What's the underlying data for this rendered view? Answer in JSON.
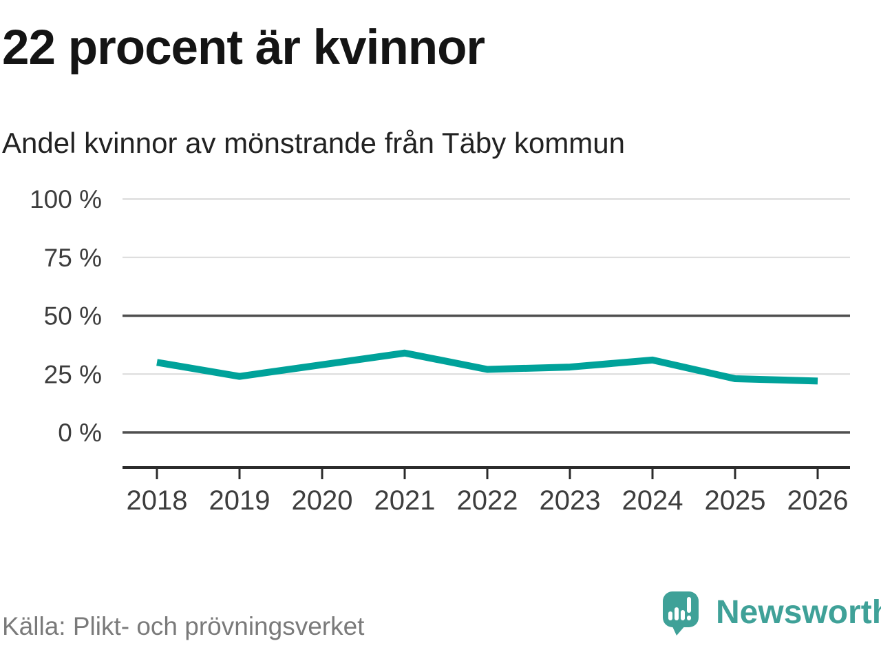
{
  "header": {
    "title": "22 procent är kvinnor",
    "subtitle": "Andel kvinnor av mönstrande från Täby kommun"
  },
  "footer": {
    "source": "Källa: Plikt- och prövningsverket",
    "brand_name": "Newsworthy",
    "brand_icon": "speech-bubble-bar-chart-icon"
  },
  "colors": {
    "line": "#00a29a",
    "brand": "#3fa198",
    "grid_light": "#dadada",
    "grid_dark": "#4f4f4f",
    "axis": "#2b2b2b",
    "tick_label": "#3d3d3d",
    "source_text": "#7a7a7a"
  },
  "chart_data": {
    "type": "line",
    "title": "22 procent är kvinnor",
    "subtitle": "Andel kvinnor av mönstrande från Täby kommun",
    "x": [
      "2018",
      "2019",
      "2020",
      "2021",
      "2022",
      "2023",
      "2024",
      "2025",
      "2026"
    ],
    "series": [
      {
        "name": "Andel kvinnor av mönstrande",
        "values": [
          30,
          24,
          29,
          34,
          27,
          28,
          31,
          23,
          22
        ]
      }
    ],
    "unit": "%",
    "ylim": [
      0,
      100
    ],
    "yticks": [
      0,
      25,
      50,
      75,
      100
    ],
    "ytick_labels": [
      "0 %",
      "25 %",
      "50 %",
      "75 %",
      "100 %"
    ],
    "emphasized_gridlines": [
      0,
      50
    ],
    "grid": true,
    "legend": "none",
    "source": "Källa: Plikt- och prövningsverket"
  }
}
